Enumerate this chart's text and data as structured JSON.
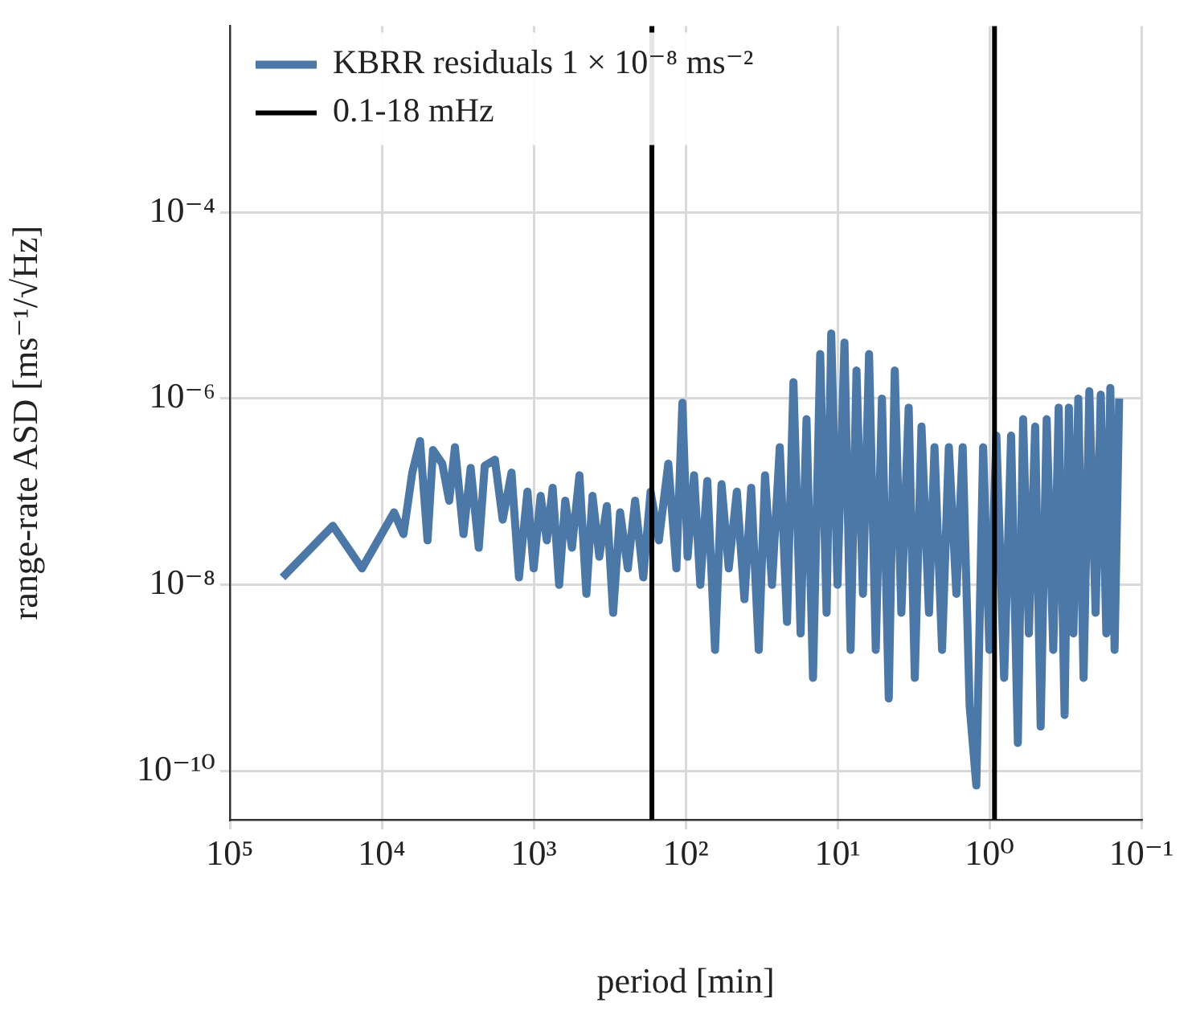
{
  "chart_data": {
    "type": "line",
    "xlabel": "period [min]",
    "ylabel": "range-rate ASD [ms⁻¹/√Hz]",
    "log": "xy",
    "grid": true,
    "legend": "top left",
    "xlim": [
      100000,
      0.1
    ],
    "ylim": [
      3e-11,
      0.01
    ],
    "xticks": [
      {
        "value": 100000,
        "label": "10⁵"
      },
      {
        "value": 10000,
        "label": "10⁴"
      },
      {
        "value": 1000,
        "label": "10³"
      },
      {
        "value": 100,
        "label": "10²"
      },
      {
        "value": 10,
        "label": "10¹"
      },
      {
        "value": 1,
        "label": "10⁰"
      },
      {
        "value": 0.1,
        "label": "10⁻¹"
      }
    ],
    "yticks": [
      {
        "value": 0.0001,
        "label": "10⁻⁴"
      },
      {
        "value": 1e-06,
        "label": "10⁻⁶"
      },
      {
        "value": 1e-08,
        "label": "10⁻⁸"
      },
      {
        "value": 1e-10,
        "label": "10⁻¹⁰"
      }
    ],
    "x": [
      45000,
      21000,
      13500,
      8300,
      7200,
      6300,
      5600,
      5000,
      4600,
      4000,
      3600,
      3300,
      2900,
      2600,
      2300,
      2100,
      1800,
      1600,
      1400,
      1250,
      1100,
      1000,
      900,
      820,
      750,
      680,
      620,
      560,
      500,
      450,
      410,
      370,
      330,
      300,
      270,
      240,
      215,
      190,
      170,
      150,
      130,
      115,
      105,
      97,
      88,
      80,
      72,
      64,
      58,
      52,
      46,
      41,
      37,
      33,
      30,
      27,
      24,
      21.5,
      19.5,
      17.5,
      16,
      14.5,
      13,
      11.8,
      11,
      10,
      9,
      8.2,
      7.5,
      6.8,
      6.2,
      5.6,
      5.1,
      4.6,
      4.2,
      3.8,
      3.4,
      3.1,
      2.8,
      2.5,
      2.3,
      2.05,
      1.85,
      1.65,
      1.5,
      1.35,
      1.22,
      1.1,
      1.0,
      0.9,
      0.8,
      0.72,
      0.65,
      0.6,
      0.55,
      0.5,
      0.46,
      0.42,
      0.38,
      0.35,
      0.32,
      0.3,
      0.28,
      0.26,
      0.24,
      0.22,
      0.2,
      0.185,
      0.17,
      0.16,
      0.15,
      0.14
    ],
    "series": [
      {
        "name": "KBRR residuals 1 × 10⁻⁸ ms⁻²",
        "color": "#4c78a8",
        "values": [
          1.2e-08,
          4.3e-08,
          1.5e-08,
          6e-08,
          3.5e-08,
          1.6e-07,
          3.5e-07,
          3e-08,
          2.8e-07,
          2e-07,
          8e-08,
          3e-07,
          3.5e-08,
          1.8e-07,
          2.5e-08,
          1.9e-07,
          2.2e-07,
          5e-08,
          1.6e-07,
          1.2e-08,
          1e-07,
          1.5e-08,
          9e-08,
          3e-08,
          1.1e-07,
          1e-08,
          8e-08,
          2.5e-08,
          1.5e-07,
          8e-09,
          9e-08,
          2e-08,
          7e-08,
          5e-09,
          6e-08,
          1.5e-08,
          8e-08,
          1.2e-08,
          1e-07,
          3e-08,
          2e-07,
          1.5e-08,
          9e-07,
          2e-08,
          1.5e-07,
          1e-08,
          1.3e-07,
          2e-09,
          1.2e-07,
          1.5e-08,
          1e-07,
          7e-09,
          1.1e-07,
          2e-09,
          1.5e-07,
          1e-08,
          3e-07,
          4e-09,
          1.5e-06,
          3e-09,
          6e-07,
          1e-09,
          3e-06,
          5e-09,
          5e-06,
          1e-08,
          4e-06,
          2e-09,
          2e-06,
          8e-09,
          3e-06,
          2e-09,
          1e-06,
          6e-10,
          2e-06,
          5e-09,
          8e-07,
          1e-09,
          5e-07,
          5e-09,
          3e-07,
          2e-09,
          3e-07,
          8e-09,
          3e-07,
          5e-10,
          7e-11,
          3e-07,
          2e-09,
          4e-07,
          1e-09,
          4e-07,
          2e-10,
          6e-07,
          3e-09,
          5e-07,
          3e-10,
          6e-07,
          2e-09,
          8e-07,
          4e-10,
          8e-07,
          3e-09,
          1e-06,
          1e-09,
          1.2e-06,
          5e-09,
          1.1e-06,
          3e-09,
          1.3e-06,
          2e-09,
          1e-06
        ]
      }
    ],
    "ref_lines": [
      {
        "axis": "x",
        "value": 166.7,
        "label": "0.1-18 mHz",
        "color": "#000000"
      },
      {
        "axis": "x",
        "value": 0.926,
        "color": "#000000"
      }
    ]
  }
}
